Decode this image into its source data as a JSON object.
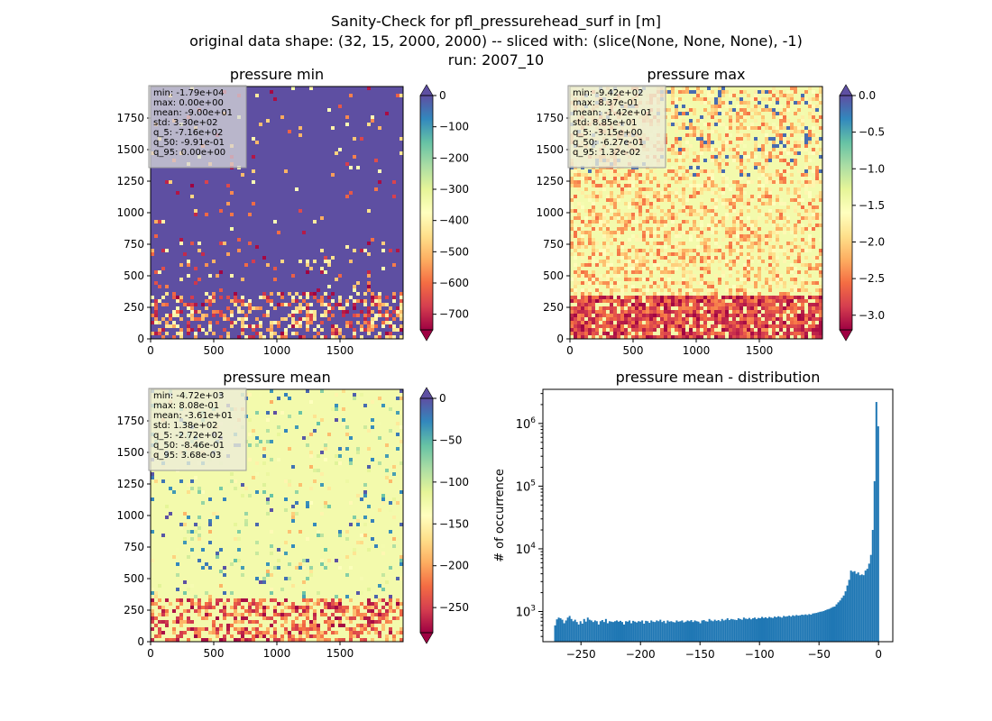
{
  "figure": {
    "title_lines": [
      "Sanity-Check for pfl_pressurehead_surf in [m]",
      "original data shape: (32, 15, 2000, 2000) -- sliced with: (slice(None, None, None), -1)",
      "run: 2007_10"
    ]
  },
  "chart_data": [
    {
      "type": "heatmap",
      "title": "pressure min",
      "xlim": [
        0,
        2000
      ],
      "ylim": [
        0,
        2000
      ],
      "xticks": [
        0,
        500,
        1000,
        1500
      ],
      "yticks": [
        0,
        250,
        500,
        750,
        1000,
        1250,
        1500,
        1750
      ],
      "colorbar": {
        "range": [
          -750,
          0
        ],
        "ticks": [
          0,
          -100,
          -200,
          -300,
          -400,
          -500,
          -600,
          -700
        ],
        "extend": "both",
        "colormap": "Spectral"
      },
      "dominant_value_fraction": 0.0,
      "stats": [
        "min: -1.79e+04",
        "max: 0.00e+00",
        "mean: -9.00e+01",
        "std: 3.30e+02",
        "q_5: -7.16e+02",
        "q_50: -9.91e-01",
        "q_95: 0.00e+00"
      ]
    },
    {
      "type": "heatmap",
      "title": "pressure max",
      "xlim": [
        0,
        2000
      ],
      "ylim": [
        0,
        2000
      ],
      "xticks": [
        0,
        500,
        1000,
        1500
      ],
      "yticks": [
        0,
        250,
        500,
        750,
        1000,
        1250,
        1500,
        1750
      ],
      "colorbar": {
        "range": [
          -3.2,
          0.0
        ],
        "ticks": [
          0.0,
          -0.5,
          -1.0,
          -1.5,
          -2.0,
          -2.5,
          -3.0
        ],
        "tick_labels": [
          "0.0",
          "−0.5",
          "−1.0",
          "−1.5",
          "−2.0",
          "−2.5",
          "−3.0"
        ],
        "extend": "both",
        "colormap": "Spectral"
      },
      "dominant_value_fraction": 0.6,
      "stats": [
        "min: -9.42e+02",
        "max: 8.37e-01",
        "mean: -1.42e+01",
        "std: 8.85e+01",
        "q_5: -3.15e+00",
        "q_50: -6.27e-01",
        "q_95: 1.32e-02"
      ]
    },
    {
      "type": "heatmap",
      "title": "pressure mean",
      "xlim": [
        0,
        2000
      ],
      "ylim": [
        0,
        2000
      ],
      "xticks": [
        0,
        500,
        1000,
        1500
      ],
      "yticks": [
        0,
        250,
        500,
        750,
        1000,
        1250,
        1500,
        1750
      ],
      "colorbar": {
        "range": [
          -280,
          0
        ],
        "ticks": [
          0,
          -50,
          -100,
          -150,
          -200,
          -250
        ],
        "extend": "both",
        "colormap": "Spectral"
      },
      "dominant_value_fraction": 0.52,
      "stats": [
        "min: -4.72e+03",
        "max: 8.08e-01",
        "mean: -3.61e+01",
        "std: 1.38e+02",
        "q_5: -2.72e+02",
        "q_50: -8.46e-01",
        "q_95: 3.68e-03"
      ]
    },
    {
      "type": "bar",
      "title": "pressure mean - distribution",
      "ylabel": "# of occurrence",
      "xlabel": "",
      "yscale": "log",
      "xlim": [
        -282,
        12
      ],
      "ylim": [
        330,
        3500000
      ],
      "xticks": [
        -250,
        -200,
        -150,
        -100,
        -50,
        0
      ],
      "yticks": [
        1000,
        10000,
        100000,
        1000000
      ],
      "color": "#1f77b4",
      "bin_width": 1.4,
      "bin_range": [
        -272.5,
        0.5
      ],
      "values": [
        600,
        750,
        800,
        780,
        740,
        650,
        720,
        800,
        850,
        760,
        700,
        740,
        680,
        620,
        700,
        640,
        760,
        690,
        800,
        740,
        720,
        680,
        720,
        700,
        620,
        700,
        730,
        680,
        760,
        650,
        700,
        690,
        680,
        700,
        720,
        690,
        710,
        680,
        620,
        700,
        690,
        720,
        650,
        710,
        690,
        670,
        700,
        690,
        720,
        640,
        710,
        700,
        660,
        720,
        690,
        680,
        720,
        700,
        740,
        680,
        710,
        650,
        720,
        690,
        700,
        680,
        670,
        720,
        690,
        700,
        720,
        670,
        690,
        720,
        700,
        730,
        680,
        720,
        700,
        690,
        650,
        720,
        730,
        700,
        690,
        760,
        720,
        700,
        740,
        710,
        730,
        700,
        760,
        720,
        740,
        780,
        730,
        760,
        750,
        740,
        730,
        780,
        760,
        740,
        800,
        770,
        760,
        790,
        750,
        780,
        800,
        760,
        790,
        780,
        820,
        790,
        810,
        780,
        820,
        800,
        790,
        830,
        810,
        840,
        820,
        800,
        850,
        830,
        840,
        860,
        830,
        870,
        850,
        880,
        860,
        870,
        890,
        880,
        900,
        880,
        910,
        890,
        930,
        940,
        950,
        970,
        990,
        1000,
        1020,
        1050,
        1080,
        1100,
        1140,
        1180,
        1200,
        1300,
        1400,
        1500,
        1650,
        1800,
        2100,
        2600,
        3200,
        4500,
        4300,
        4400,
        4000,
        4200,
        3800,
        3900,
        3800,
        4500,
        4800,
        5800,
        8000,
        20000,
        120000,
        2200000,
        900000
      ]
    }
  ]
}
